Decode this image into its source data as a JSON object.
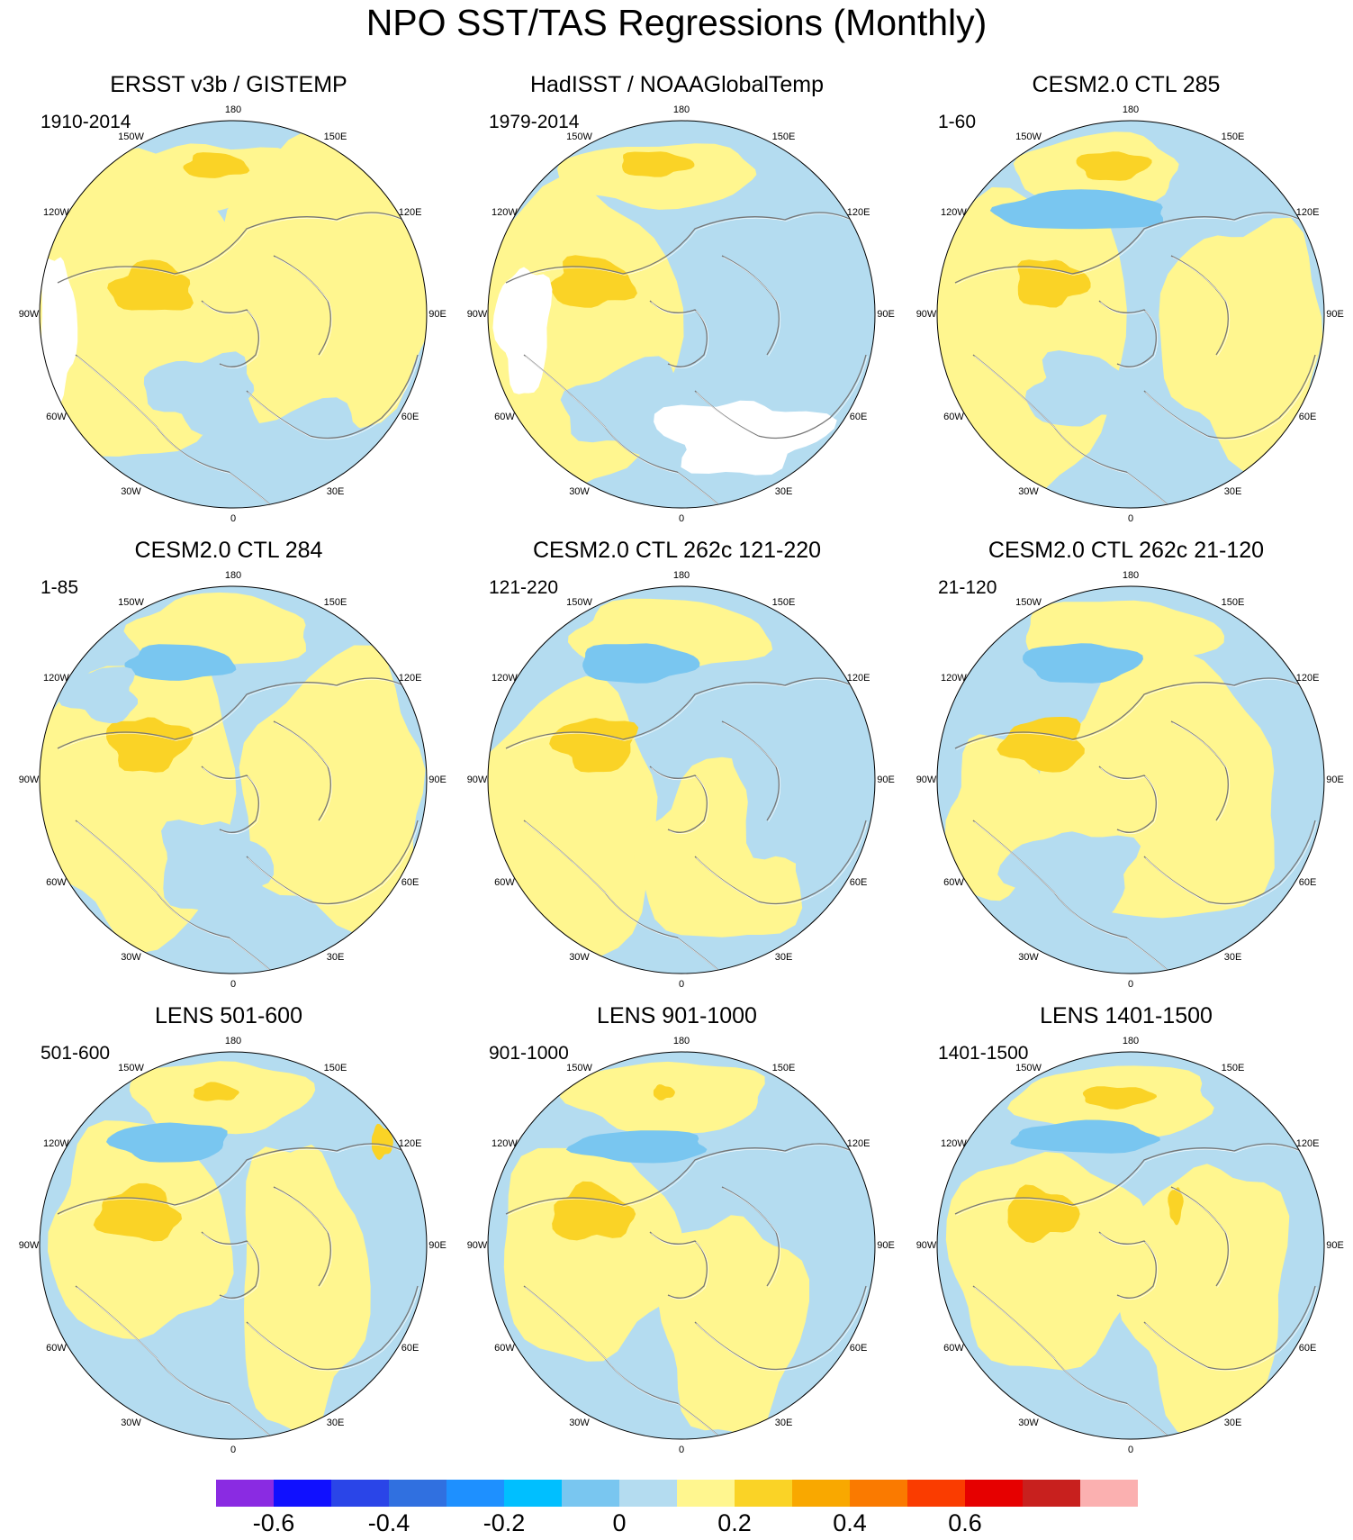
{
  "title": "NPO SST/TAS Regressions (Monthly)",
  "longitude_labels": [
    "180",
    "150E",
    "120E",
    "90E",
    "60E",
    "30E",
    "0",
    "30W",
    "60W",
    "90W",
    "120W",
    "150W"
  ],
  "panels": [
    {
      "title": "ERSST v3b / GISTEMP",
      "period": "1910-2014"
    },
    {
      "title": "HadISST / NOAAGlobalTemp",
      "period": "1979-2014"
    },
    {
      "title": "CESM2.0 CTL 285",
      "period": "1-60"
    },
    {
      "title": "CESM2.0 CTL 284",
      "period": "1-85"
    },
    {
      "title": "CESM2.0 CTL 262c 121-220",
      "period": "121-220"
    },
    {
      "title": "CESM2.0 CTL 262c 21-120",
      "period": "21-120"
    },
    {
      "title": "LENS 501-600",
      "period": "501-600"
    },
    {
      "title": "LENS 901-1000",
      "period": "901-1000"
    },
    {
      "title": "LENS 1401-1500",
      "period": "1401-1500"
    }
  ],
  "colorbar": {
    "colors": [
      "#8a2be2",
      "#1010ff",
      "#2a45e8",
      "#3070e0",
      "#1e90ff",
      "#00bfff",
      "#79c6f0",
      "#b4dcf0",
      "#fff68f",
      "#fad326",
      "#f9a800",
      "#fa7a00",
      "#fa3c00",
      "#e60000",
      "#c8201e",
      "#fbb0b0"
    ],
    "labels": [
      "-0.6",
      "-0.4",
      "-0.2",
      "0",
      "0.2",
      "0.4",
      "0.6"
    ]
  },
  "colors": {
    "negative_light": "#b4dcf0",
    "negative_mid": "#79c6f0",
    "positive_light": "#fff68f",
    "positive_mid": "#fad326",
    "missing": "#ffffff",
    "coastline": "#777777"
  }
}
